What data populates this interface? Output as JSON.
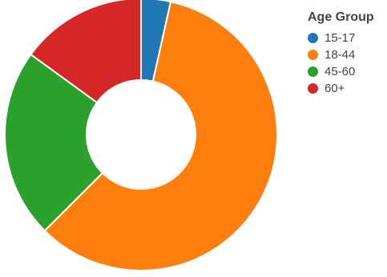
{
  "chart_data": {
    "type": "pie",
    "legend_title": "Age Group",
    "legend_placement": "top-right",
    "donut": true,
    "slices": [
      {
        "label": "15-17",
        "value": 3.5,
        "color": "#1f77b4"
      },
      {
        "label": "18-44",
        "value": 59.0,
        "color": "#ff7f0e"
      },
      {
        "label": "45-60",
        "value": 22.5,
        "color": "#2ca02c"
      },
      {
        "label": "60+",
        "value": 15.0,
        "color": "#d62728"
      }
    ]
  }
}
